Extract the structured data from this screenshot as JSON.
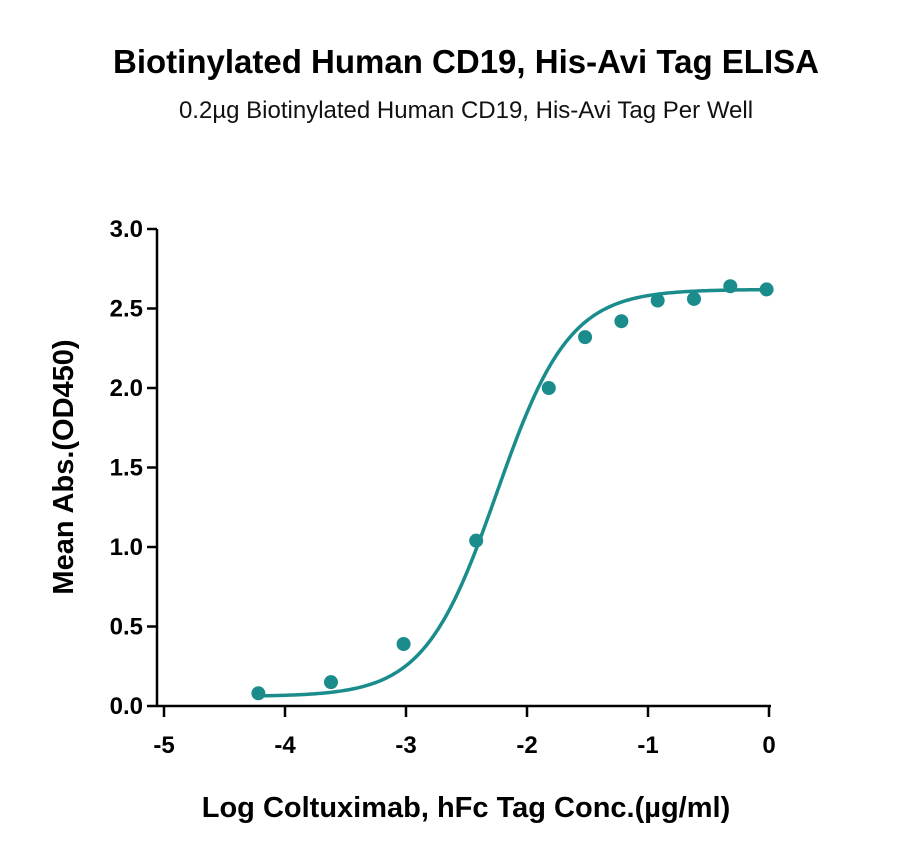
{
  "chart_data": {
    "type": "scatter",
    "title": "Biotinylated Human CD19, His-Avi Tag ELISA",
    "subtitle": "0.2µg Biotinylated Human CD19, His-Avi Tag Per Well",
    "xlabel": "Log Coltuximab, hFc Tag Conc.(µg/ml)",
    "ylabel": "Mean Abs.(OD450)",
    "xlim": [
      -5,
      0
    ],
    "ylim": [
      0,
      3
    ],
    "xticks": [
      -5,
      -4,
      -3,
      -2,
      -1,
      0
    ],
    "xtick_labels": [
      "-5",
      "-4",
      "-3",
      "-2",
      "-1",
      "0"
    ],
    "yticks": [
      0,
      0.5,
      1,
      1.5,
      2,
      2.5,
      3
    ],
    "ytick_labels": [
      "0.0",
      "0.5",
      "1.0",
      "1.5",
      "2.0",
      "2.5",
      "3.0"
    ],
    "grid": false,
    "color": "#1a8c8c",
    "points": [
      {
        "x": -4.22,
        "y": 0.08
      },
      {
        "x": -3.62,
        "y": 0.15
      },
      {
        "x": -3.02,
        "y": 0.39
      },
      {
        "x": -2.42,
        "y": 1.04
      },
      {
        "x": -1.82,
        "y": 2.0
      },
      {
        "x": -1.52,
        "y": 2.32
      },
      {
        "x": -1.22,
        "y": 2.42
      },
      {
        "x": -0.92,
        "y": 2.55
      },
      {
        "x": -0.62,
        "y": 2.56
      },
      {
        "x": -0.32,
        "y": 2.64
      },
      {
        "x": -0.02,
        "y": 2.62
      }
    ],
    "fit": {
      "model": "4PL",
      "bottom": 0.06,
      "top": 2.62,
      "logEC50": -2.25,
      "hill": 1.45,
      "x_range": [
        -4.22,
        -0.02
      ]
    }
  }
}
